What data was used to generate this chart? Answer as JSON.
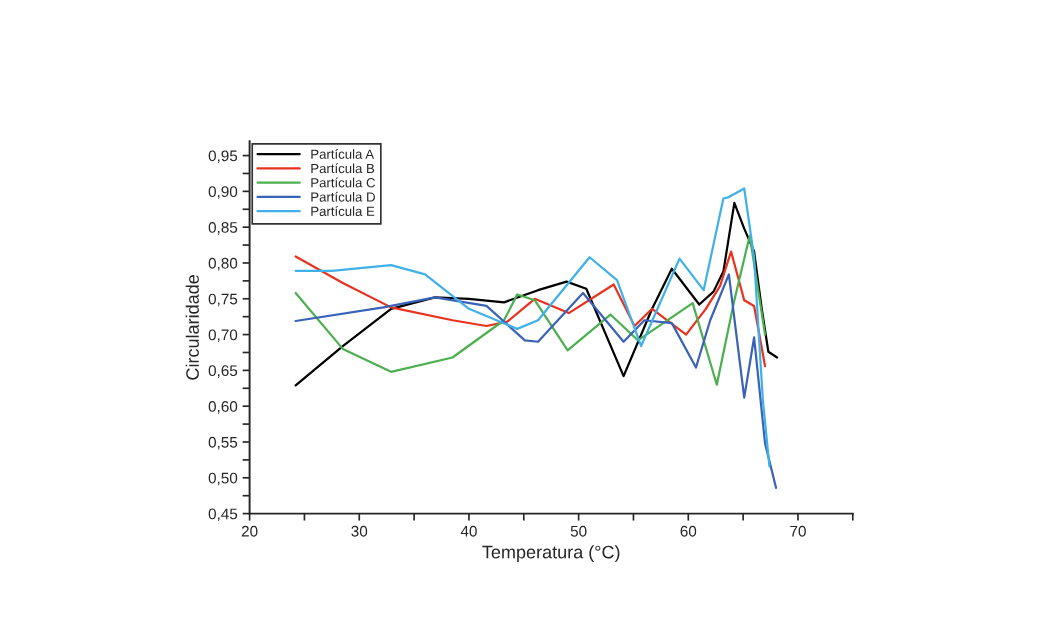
{
  "chart_data": {
    "type": "line",
    "xlabel": "Temperatura (°C)",
    "ylabel": "Circularidade",
    "xlim": [
      20,
      75
    ],
    "ylim": [
      0.45,
      0.97
    ],
    "xticks": [
      20,
      {
        "value": 25,
        "label": null
      },
      30,
      {
        "value": 35,
        "label": null
      },
      40,
      {
        "value": 45,
        "label": null
      },
      50,
      {
        "value": 55,
        "label": null
      },
      60,
      {
        "value": 65,
        "label": null
      },
      70,
      {
        "value": 75,
        "label": null
      }
    ],
    "yticks": [
      {
        "value": 0.45,
        "label": "0,45"
      },
      {
        "value": 0.475,
        "label": null
      },
      {
        "value": 0.5,
        "label": "0,50"
      },
      {
        "value": 0.525,
        "label": null
      },
      {
        "value": 0.55,
        "label": "0,55"
      },
      {
        "value": 0.575,
        "label": null
      },
      {
        "value": 0.6,
        "label": "0,60"
      },
      {
        "value": 0.625,
        "label": null
      },
      {
        "value": 0.65,
        "label": "0,65"
      },
      {
        "value": 0.675,
        "label": null
      },
      {
        "value": 0.7,
        "label": "0,70"
      },
      {
        "value": 0.725,
        "label": null
      },
      {
        "value": 0.75,
        "label": "0,75"
      },
      {
        "value": 0.775,
        "label": null
      },
      {
        "value": 0.8,
        "label": "0,80"
      },
      {
        "value": 0.825,
        "label": null
      },
      {
        "value": 0.85,
        "label": "0,85"
      },
      {
        "value": 0.875,
        "label": null
      },
      {
        "value": 0.9,
        "label": "0,90"
      },
      {
        "value": 0.925,
        "label": null
      },
      {
        "value": 0.95,
        "label": "0,95"
      }
    ],
    "grid": false,
    "legend": "top left",
    "marker": "none",
    "line_style": "solid",
    "series": [
      {
        "name": "Partícula A",
        "color": "#000000",
        "x": [
          24.2,
          28.5,
          32.9,
          36.9,
          40.0,
          43.2,
          46.3,
          48.9,
          50.7,
          54.1,
          56.7,
          58.5,
          61.0,
          62.3,
          63.2,
          64.2,
          65.1,
          66.0,
          66.7,
          67.3,
          68.1
        ],
        "values": [
          0.629,
          0.684,
          0.736,
          0.752,
          0.75,
          0.745,
          0.762,
          0.774,
          0.764,
          0.642,
          0.736,
          0.792,
          0.742,
          0.76,
          0.788,
          0.884,
          0.848,
          0.816,
          0.736,
          0.676,
          0.668
        ]
      },
      {
        "name": "Partícula B",
        "color": "#e8321f",
        "x": [
          24.2,
          28.5,
          32.9,
          38.5,
          41.6,
          43.5,
          46.0,
          49.1,
          53.2,
          55.1,
          56.7,
          59.8,
          61.6,
          62.9,
          63.9,
          65.1,
          66.0,
          67.0
        ],
        "values": [
          0.809,
          0.772,
          0.738,
          0.72,
          0.712,
          0.718,
          0.75,
          0.73,
          0.77,
          0.712,
          0.736,
          0.7,
          0.736,
          0.768,
          0.816,
          0.748,
          0.74,
          0.656
        ]
      },
      {
        "name": "Partícula C",
        "color": "#4cb050",
        "x": [
          24.2,
          28.5,
          32.9,
          38.5,
          43.2,
          44.4,
          46.0,
          49.0,
          52.9,
          55.4,
          60.4,
          62.6,
          64.2,
          65.6,
          67.0
        ],
        "values": [
          0.758,
          0.68,
          0.648,
          0.668,
          0.72,
          0.756,
          0.748,
          0.678,
          0.728,
          0.692,
          0.744,
          0.63,
          0.748,
          0.838,
          0.7
        ]
      },
      {
        "name": "Partícula D",
        "color": "#3a63b8",
        "x": [
          24.2,
          32.2,
          36.9,
          41.6,
          45.1,
          46.3,
          50.4,
          54.1,
          56.0,
          58.5,
          60.7,
          62.0,
          63.7,
          65.1,
          66.0,
          67.0,
          68.0
        ],
        "values": [
          0.719,
          0.738,
          0.752,
          0.74,
          0.692,
          0.69,
          0.758,
          0.69,
          0.72,
          0.716,
          0.654,
          0.72,
          0.784,
          0.612,
          0.696,
          0.548,
          0.486
        ]
      },
      {
        "name": "Partícula E",
        "color": "#3fb0e8",
        "x": [
          24.2,
          27.5,
          32.9,
          36.0,
          40.0,
          44.4,
          46.3,
          51.0,
          53.5,
          55.7,
          59.2,
          61.4,
          63.2,
          63.7,
          65.1,
          66.0,
          66.8,
          67.4
        ],
        "values": [
          0.789,
          0.789,
          0.797,
          0.784,
          0.736,
          0.708,
          0.72,
          0.808,
          0.776,
          0.684,
          0.806,
          0.762,
          0.89,
          0.892,
          0.904,
          0.808,
          0.608,
          0.516
        ]
      }
    ]
  }
}
